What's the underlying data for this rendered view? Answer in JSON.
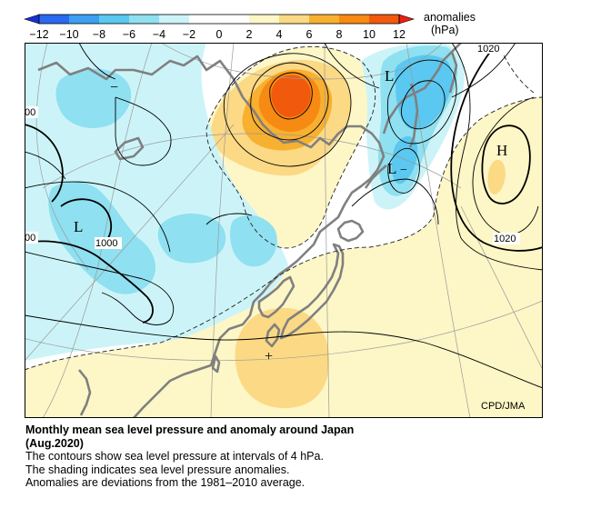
{
  "colorbar": {
    "ticks": [
      "−12",
      "−10",
      "−8",
      "−6",
      "−4",
      "−2",
      "0",
      "2",
      "4",
      "6",
      "8",
      "10",
      "12"
    ],
    "unit_line1": "anomalies",
    "unit_line2": "(hPa)",
    "colors": {
      "n12": "#1f3fe0",
      "n10": "#2a6af0",
      "n8": "#3d9ef2",
      "n6": "#5ac8f0",
      "n4": "#8fe0f0",
      "n2": "#ccf4f8",
      "p2": "#fdf6c6",
      "p4": "#fbd985",
      "p6": "#f8b030",
      "p8": "#f78a12",
      "p10": "#f15a0c",
      "p12": "#e82010"
    }
  },
  "map": {
    "contour_labels": [
      "1020",
      "1020",
      "1000",
      "00",
      "00"
    ],
    "markers": {
      "low": "L",
      "high": "H",
      "positive": "+",
      "negative": "−"
    },
    "credit": "CPD/JMA"
  },
  "caption": {
    "title_line1": "Monthly mean sea level pressure and anomaly around Japan",
    "title_line2": "(Aug.2020)",
    "line1": "The contours show sea level pressure at intervals of 4 hPa.",
    "line2": "The shading indicates sea level pressure anomalies.",
    "line3": "Anomalies are deviations from the 1981–2010 average."
  }
}
